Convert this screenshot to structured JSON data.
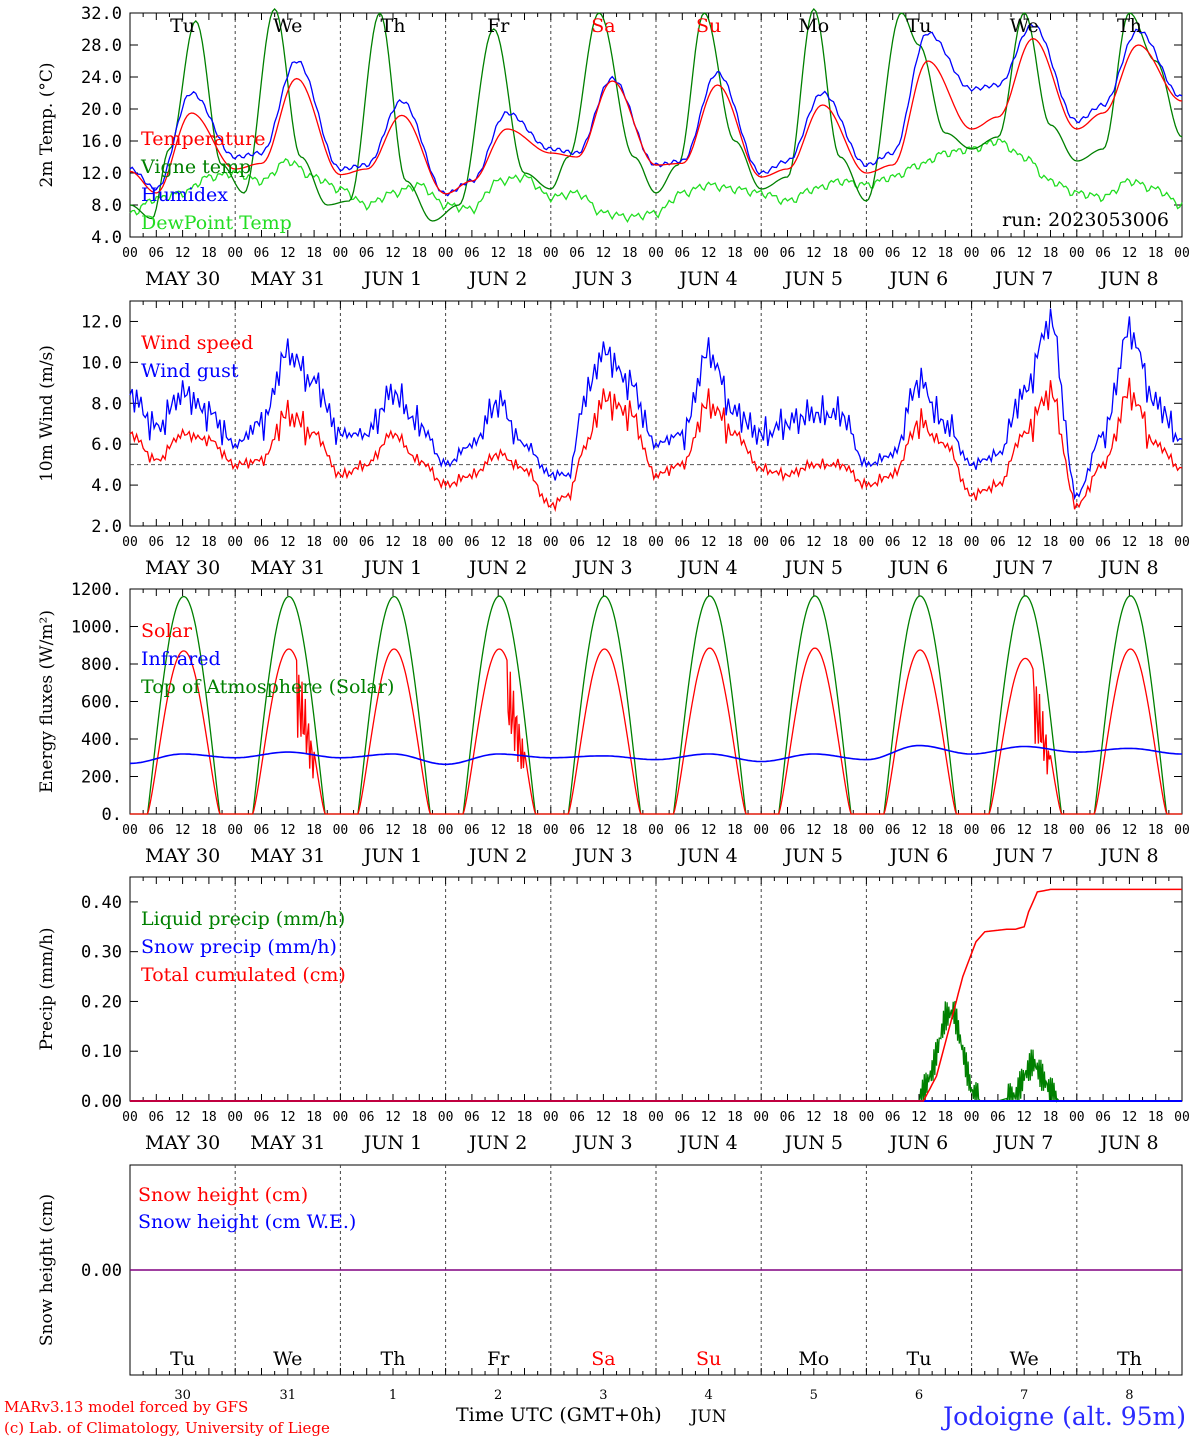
{
  "run_label": "run: 2023053006",
  "hour_ticks": [
    "00",
    "06",
    "12",
    "18"
  ],
  "hour_tick_end": "00",
  "dates": [
    "MAY 30",
    "MAY 31",
    "JUN  1",
    "JUN  2",
    "JUN  3",
    "JUN  4",
    "JUN  5",
    "JUN  6",
    "JUN  7",
    "JUN  8"
  ],
  "weekdays": [
    {
      "label": "Tu",
      "color": "#000000"
    },
    {
      "label": "We",
      "color": "#000000"
    },
    {
      "label": "Th",
      "color": "#000000"
    },
    {
      "label": "Fr",
      "color": "#000000"
    },
    {
      "label": "Sa",
      "color": "#ff0000"
    },
    {
      "label": "Su",
      "color": "#ff0000"
    },
    {
      "label": "Mo",
      "color": "#000000"
    },
    {
      "label": "Tu",
      "color": "#000000"
    },
    {
      "label": "We",
      "color": "#000000"
    },
    {
      "label": "Th",
      "color": "#000000"
    }
  ],
  "day_numbers": [
    "30",
    "31",
    "1",
    "2",
    "3",
    "4",
    "5",
    "6",
    "7",
    "8"
  ],
  "month_label": "JUN",
  "xlabel": "Time UTC (GMT+0h)",
  "footer": {
    "model": "MARv3.13 model forced by GFS",
    "credit": "(c) Lab. of Climatology, University of Liege",
    "station": "Jodoigne (alt. 95m)"
  },
  "colors": {
    "red": "#ff0000",
    "green": "#008000",
    "blue": "#0000ff",
    "lime": "#22dd22",
    "purple": "#800080"
  },
  "chart_data": [
    {
      "type": "line",
      "ylabel": "2m Temp. (°C)",
      "ylim": [
        4.0,
        32.0
      ],
      "yticks": [
        "4.0",
        "8.0",
        "12.0",
        "16.0",
        "20.0",
        "24.0",
        "28.0",
        "32.0"
      ],
      "x_unit": "hours since May 30 00 UTC",
      "series": [
        {
          "name": "Temperature",
          "color": "red",
          "x": [
            0,
            6,
            14,
            24,
            30,
            38,
            48,
            54,
            62,
            72,
            78,
            86,
            96,
            102,
            110,
            120,
            126,
            134,
            144,
            150,
            158,
            168,
            174,
            182,
            192,
            198,
            206,
            216,
            222,
            230,
            240
          ],
          "values": [
            12.2,
            9.5,
            19.5,
            12.5,
            13.2,
            23.8,
            11.8,
            12.5,
            19.2,
            9.4,
            11.0,
            17.5,
            14.5,
            14.0,
            23.5,
            13.0,
            13.2,
            23.0,
            11.5,
            12.5,
            20.5,
            12.0,
            13.0,
            26.0,
            17.5,
            19.0,
            28.8,
            17.5,
            19.5,
            28.0,
            21.0
          ]
        },
        {
          "name": "Vigne temp",
          "color": "green",
          "x": [
            0,
            5,
            9,
            15,
            21,
            26,
            33,
            39,
            45,
            50,
            57,
            63,
            69,
            75,
            83,
            90,
            96,
            100,
            107,
            115,
            120,
            125,
            131,
            138,
            144,
            150,
            156,
            162,
            168,
            176,
            180,
            186,
            192,
            198,
            204,
            210,
            216,
            222,
            228,
            234,
            240
          ],
          "values": [
            8.0,
            6.3,
            15.0,
            31.0,
            13.0,
            9.5,
            32.5,
            14.0,
            8.0,
            8.5,
            32.0,
            11.0,
            6.0,
            8.0,
            30.0,
            12.0,
            10.0,
            14.0,
            32.0,
            14.0,
            9.5,
            13.0,
            32.0,
            16.0,
            10.0,
            11.5,
            32.5,
            14.0,
            8.5,
            32.0,
            28.0,
            17.0,
            15.0,
            16.5,
            32.0,
            18.0,
            13.5,
            15.0,
            32.0,
            26.0,
            16.5
          ]
        },
        {
          "name": "Humidex",
          "color": "blue",
          "x": [
            0,
            6,
            14,
            24,
            30,
            38,
            48,
            54,
            62,
            72,
            78,
            86,
            96,
            102,
            110,
            120,
            126,
            134,
            144,
            150,
            158,
            168,
            174,
            182,
            192,
            198,
            206,
            216,
            222,
            230,
            240
          ],
          "values": [
            12.5,
            10.0,
            22.0,
            14.0,
            14.5,
            26.0,
            12.5,
            13.0,
            21.0,
            9.4,
            11.0,
            19.5,
            15.0,
            14.5,
            23.8,
            13.0,
            13.5,
            24.5,
            12.0,
            13.5,
            22.0,
            13.0,
            14.5,
            29.5,
            22.5,
            23.0,
            30.5,
            18.5,
            20.5,
            29.8,
            21.5
          ]
        },
        {
          "name": "DewPoint Temp",
          "color": "lime",
          "x": [
            0,
            6,
            12,
            18,
            24,
            30,
            36,
            42,
            48,
            54,
            60,
            66,
            72,
            78,
            84,
            90,
            96,
            102,
            108,
            114,
            120,
            126,
            132,
            138,
            144,
            150,
            156,
            162,
            168,
            174,
            180,
            186,
            192,
            198,
            204,
            210,
            216,
            222,
            228,
            234,
            240
          ],
          "values": [
            7.0,
            8.8,
            9.5,
            11.5,
            12.0,
            11.0,
            13.5,
            11.5,
            10.0,
            8.0,
            9.5,
            10.5,
            8.0,
            7.5,
            11.0,
            11.5,
            9.0,
            9.5,
            7.0,
            6.5,
            7.0,
            9.5,
            10.5,
            10.0,
            9.5,
            8.5,
            10.0,
            11.0,
            10.5,
            11.5,
            13.0,
            14.5,
            15.0,
            16.0,
            14.0,
            11.0,
            9.5,
            9.0,
            11.0,
            10.0,
            8.0
          ]
        }
      ]
    },
    {
      "type": "line",
      "ylabel": "10m Wind (m/s)",
      "ylim": [
        2.0,
        13.0
      ],
      "yticks": [
        "2.0",
        "4.0",
        "6.0",
        "8.0",
        "10.0",
        "12.0"
      ],
      "reference_line": 5.0,
      "series": [
        {
          "name": "Wind speed",
          "color": "red",
          "x": [
            0,
            6,
            12,
            18,
            24,
            30,
            36,
            42,
            48,
            54,
            60,
            66,
            72,
            78,
            84,
            90,
            96,
            100,
            104,
            108,
            114,
            120,
            126,
            132,
            138,
            144,
            150,
            156,
            162,
            168,
            174,
            180,
            186,
            192,
            198,
            204,
            210,
            216,
            222,
            228,
            234,
            240
          ],
          "values": [
            6.5,
            5.2,
            6.5,
            6.2,
            5.0,
            5.2,
            7.5,
            6.5,
            4.5,
            5.0,
            6.5,
            5.2,
            4.0,
            4.5,
            5.5,
            4.8,
            3.0,
            3.5,
            6.0,
            8.2,
            7.5,
            4.5,
            5.0,
            8.0,
            6.5,
            4.8,
            4.5,
            5.0,
            5.0,
            4.0,
            4.5,
            7.0,
            6.0,
            3.5,
            4.0,
            6.5,
            8.5,
            3.0,
            5.0,
            8.5,
            6.0,
            4.8
          ]
        },
        {
          "name": "Wind gust",
          "color": "blue",
          "x": [
            0,
            6,
            12,
            18,
            24,
            30,
            36,
            42,
            48,
            54,
            60,
            66,
            72,
            78,
            84,
            90,
            96,
            100,
            104,
            108,
            114,
            120,
            126,
            132,
            138,
            144,
            150,
            156,
            162,
            168,
            174,
            180,
            186,
            192,
            198,
            204,
            210,
            216,
            222,
            228,
            234,
            240
          ],
          "values": [
            8.4,
            6.8,
            8.5,
            7.5,
            6.0,
            7.0,
            10.5,
            9.0,
            6.5,
            6.5,
            8.5,
            7.0,
            5.0,
            6.0,
            8.0,
            6.0,
            4.5,
            4.5,
            8.5,
            10.5,
            9.0,
            6.0,
            6.5,
            10.5,
            7.5,
            6.5,
            7.0,
            7.5,
            7.5,
            5.0,
            5.5,
            9.0,
            7.0,
            5.0,
            5.5,
            8.5,
            12.0,
            3.5,
            6.5,
            11.5,
            8.0,
            6.2
          ]
        }
      ]
    },
    {
      "type": "line",
      "ylabel": "Energy fluxes (W/m²)",
      "ylim": [
        0,
        1200
      ],
      "yticks": [
        "0.",
        "200.",
        "400.",
        "600.",
        "800.",
        "1000.",
        "1200."
      ],
      "diurnal": {
        "sunrise_h": 4,
        "sunset_h": 20.5
      },
      "series": [
        {
          "name": "Solar",
          "color": "red",
          "daily_peak": [
            870,
            880,
            880,
            880,
            880,
            885,
            885,
            875,
            830,
            880
          ]
        },
        {
          "name": "Infrared",
          "color": "blue",
          "x": [
            0,
            12,
            24,
            36,
            48,
            60,
            72,
            84,
            96,
            108,
            120,
            132,
            144,
            156,
            168,
            180,
            192,
            204,
            216,
            228,
            240
          ],
          "values": [
            270,
            320,
            300,
            330,
            300,
            320,
            265,
            320,
            300,
            310,
            290,
            320,
            280,
            320,
            290,
            365,
            320,
            360,
            330,
            350,
            320
          ]
        },
        {
          "name": "Top of Atmosphere (Solar)",
          "color": "green",
          "daily_peak": [
            1160,
            1160,
            1160,
            1162,
            1162,
            1163,
            1163,
            1163,
            1164,
            1164
          ]
        }
      ]
    },
    {
      "type": "line",
      "ylabel": "Precip (mm/h)",
      "ylim": [
        0,
        0.45
      ],
      "yticks": [
        "0.00",
        "0.10",
        "0.20",
        "0.30",
        "0.40"
      ],
      "series": [
        {
          "name": "Liquid precip (mm/h)",
          "color": "green",
          "x": [
            180,
            183,
            186,
            188,
            190,
            192,
            194,
            198,
            202,
            204,
            206,
            208,
            210,
            212,
            240
          ],
          "values": [
            0,
            0.06,
            0.17,
            0.18,
            0.1,
            0.02,
            0,
            0,
            0.01,
            0.05,
            0.08,
            0.05,
            0.02,
            0,
            0
          ]
        },
        {
          "name": "Snow precip (mm/h)",
          "color": "blue",
          "x": [
            0,
            240
          ],
          "values": [
            0,
            0
          ]
        },
        {
          "name": "Total cumulated (cm)",
          "color": "red",
          "x": [
            0,
            181,
            184,
            187,
            190,
            193,
            195,
            200,
            202,
            204,
            205,
            207,
            210,
            240
          ],
          "values": [
            0,
            0,
            0.05,
            0.15,
            0.25,
            0.32,
            0.34,
            0.345,
            0.345,
            0.35,
            0.38,
            0.42,
            0.425,
            0.425
          ]
        }
      ]
    },
    {
      "type": "line",
      "ylabel": "Snow height (cm)",
      "yticks": [
        "0.00"
      ],
      "series": [
        {
          "name": "Snow height (cm)",
          "color": "red",
          "x": [
            0,
            240
          ],
          "values": [
            0,
            0
          ]
        },
        {
          "name": "Snow height (cm W.E.)",
          "color": "blue",
          "x": [
            0,
            240
          ],
          "values": [
            0,
            0
          ]
        }
      ]
    }
  ]
}
